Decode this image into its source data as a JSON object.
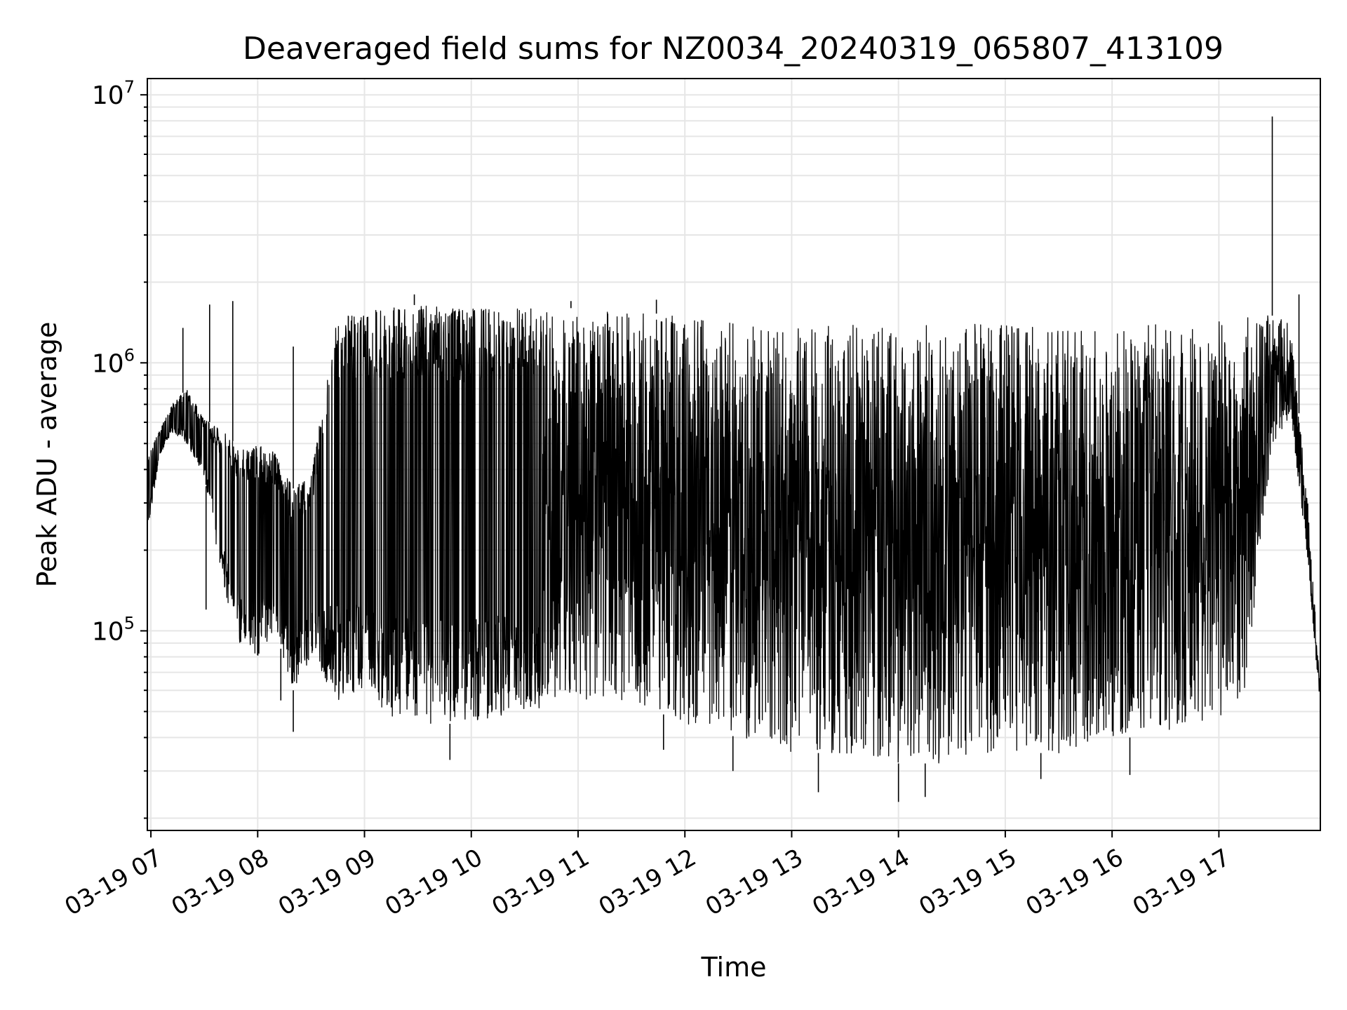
{
  "chart_data": {
    "type": "line",
    "title": "Deaveraged field sums for NZ0034_20240319_065807_413109",
    "xlabel": "Time",
    "ylabel": "Peak ADU - average",
    "y_scale": "log",
    "ylim": [
      18000,
      11500000
    ],
    "xlim": [
      "2024-03-19 06:58",
      "2024-03-19 17:57"
    ],
    "grid": true,
    "line_color": "#000000",
    "grid_color": "#e6e6e6",
    "x_ticks": [
      {
        "value": "2024-03-19 07:00",
        "label": "03-19 07"
      },
      {
        "value": "2024-03-19 08:00",
        "label": "03-19 08"
      },
      {
        "value": "2024-03-19 09:00",
        "label": "03-19 09"
      },
      {
        "value": "2024-03-19 10:00",
        "label": "03-19 10"
      },
      {
        "value": "2024-03-19 11:00",
        "label": "03-19 11"
      },
      {
        "value": "2024-03-19 12:00",
        "label": "03-19 12"
      },
      {
        "value": "2024-03-19 13:00",
        "label": "03-19 13"
      },
      {
        "value": "2024-03-19 14:00",
        "label": "03-19 14"
      },
      {
        "value": "2024-03-19 15:00",
        "label": "03-19 15"
      },
      {
        "value": "2024-03-19 16:00",
        "label": "03-19 16"
      },
      {
        "value": "2024-03-19 17:00",
        "label": "03-19 17"
      }
    ],
    "y_ticks": [
      {
        "value": 100000,
        "base": "10",
        "exp": "5"
      },
      {
        "value": 1000000,
        "base": "10",
        "exp": "6"
      },
      {
        "value": 10000000,
        "base": "10",
        "exp": "7"
      }
    ],
    "series": [
      {
        "envelope": {
          "x": [
            "2024-03-19 06:58",
            "2024-03-19 07:05",
            "2024-03-19 07:12",
            "2024-03-19 07:20",
            "2024-03-19 07:30",
            "2024-03-19 07:40",
            "2024-03-19 07:50",
            "2024-03-19 08:00",
            "2024-03-19 08:10",
            "2024-03-19 08:20",
            "2024-03-19 08:30",
            "2024-03-19 08:45",
            "2024-03-19 09:00",
            "2024-03-19 09:15",
            "2024-03-19 09:30",
            "2024-03-19 10:00",
            "2024-03-19 10:30",
            "2024-03-19 11:00",
            "2024-03-19 11:30",
            "2024-03-19 12:00",
            "2024-03-19 12:30",
            "2024-03-19 13:00",
            "2024-03-19 13:30",
            "2024-03-19 14:00",
            "2024-03-19 14:30",
            "2024-03-19 15:00",
            "2024-03-19 15:30",
            "2024-03-19 16:00",
            "2024-03-19 16:30",
            "2024-03-19 17:00",
            "2024-03-19 17:15",
            "2024-03-19 17:30",
            "2024-03-19 17:40",
            "2024-03-19 17:50",
            "2024-03-19 17:57"
          ],
          "upper": [
            450000,
            560000,
            700000,
            800000,
            620000,
            560000,
            480000,
            500000,
            460000,
            340000,
            380000,
            1500000,
            1550000,
            1600000,
            1650000,
            1600000,
            1600000,
            1600000,
            1550000,
            1500000,
            1450000,
            1400000,
            1400000,
            1400000,
            1400000,
            1400000,
            1350000,
            1350000,
            1400000,
            1450000,
            1500000,
            1500000,
            1400000,
            300000,
            60000
          ],
          "lower": [
            230000,
            450000,
            550000,
            500000,
            380000,
            150000,
            90000,
            80000,
            100000,
            60000,
            80000,
            55000,
            60000,
            48000,
            45000,
            45000,
            50000,
            55000,
            55000,
            45000,
            40000,
            35000,
            35000,
            32000,
            32000,
            35000,
            35000,
            40000,
            40000,
            45000,
            60000,
            500000,
            600000,
            180000,
            50000
          ]
        },
        "spikes": [
          {
            "x": "2024-03-19 07:18",
            "y": 1350000
          },
          {
            "x": "2024-03-19 07:33",
            "y": 1650000
          },
          {
            "x": "2024-03-19 07:46",
            "y": 1700000
          },
          {
            "x": "2024-03-19 08:20",
            "y": 1150000
          },
          {
            "x": "2024-03-19 09:28",
            "y": 1800000
          },
          {
            "x": "2024-03-19 10:56",
            "y": 1700000
          },
          {
            "x": "2024-03-19 11:44",
            "y": 1720000
          },
          {
            "x": "2024-03-19 17:30",
            "y": 8300000
          },
          {
            "x": "2024-03-19 17:45",
            "y": 1800000
          }
        ],
        "dips": [
          {
            "x": "2024-03-19 07:31",
            "y": 120000
          },
          {
            "x": "2024-03-19 08:13",
            "y": 55000
          },
          {
            "x": "2024-03-19 08:20",
            "y": 42000
          },
          {
            "x": "2024-03-19 09:48",
            "y": 33000
          },
          {
            "x": "2024-03-19 11:48",
            "y": 36000
          },
          {
            "x": "2024-03-19 12:27",
            "y": 30000
          },
          {
            "x": "2024-03-19 13:15",
            "y": 25000
          },
          {
            "x": "2024-03-19 14:00",
            "y": 23000
          },
          {
            "x": "2024-03-19 14:15",
            "y": 24000
          },
          {
            "x": "2024-03-19 15:20",
            "y": 28000
          },
          {
            "x": "2024-03-19 16:10",
            "y": 29000
          }
        ]
      }
    ]
  }
}
